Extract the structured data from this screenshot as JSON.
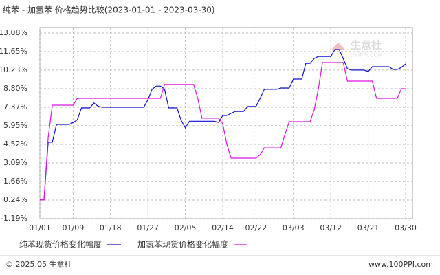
{
  "chart_data": {
    "type": "line",
    "title": "纯苯 - 加氢苯 价格趋势比较(2023-01-01 - 2023-03-30)",
    "categories": [
      "01/01",
      null,
      null,
      null,
      null,
      null,
      null,
      null,
      "01/09",
      null,
      null,
      null,
      null,
      null,
      null,
      null,
      null,
      "01/18",
      null,
      null,
      null,
      null,
      null,
      null,
      null,
      null,
      "01/27",
      null,
      null,
      null,
      null,
      null,
      null,
      null,
      null,
      "02/05",
      null,
      null,
      null,
      null,
      null,
      null,
      null,
      null,
      "02/14",
      null,
      null,
      null,
      null,
      null,
      null,
      null,
      "02/22",
      null,
      null,
      null,
      null,
      null,
      null,
      null,
      null,
      "03/03",
      null,
      null,
      null,
      null,
      null,
      null,
      null,
      null,
      "03/12",
      null,
      null,
      null,
      null,
      null,
      null,
      null,
      null,
      "03/21",
      null,
      null,
      null,
      null,
      null,
      null,
      null,
      null,
      "03/30"
    ],
    "series": [
      {
        "name": "纯苯现货价格变化幅度",
        "color": "#1010d0",
        "values": [
          0.24,
          0.24,
          4.68,
          4.68,
          6.05,
          6.05,
          6.05,
          6.05,
          6.2,
          6.4,
          7.32,
          7.32,
          7.32,
          7.7,
          7.45,
          7.37,
          7.37,
          7.37,
          7.37,
          7.37,
          7.37,
          7.37,
          7.37,
          7.37,
          7.37,
          7.37,
          7.95,
          8.75,
          9.0,
          9.0,
          8.75,
          7.32,
          7.32,
          7.32,
          6.37,
          5.79,
          6.3,
          6.3,
          6.3,
          6.3,
          6.3,
          6.3,
          6.3,
          6.2,
          6.74,
          6.74,
          6.9,
          7.05,
          7.05,
          7.05,
          7.43,
          7.43,
          7.43,
          8.06,
          8.75,
          8.75,
          8.75,
          8.75,
          8.85,
          8.85,
          8.85,
          9.54,
          9.54,
          9.54,
          10.75,
          10.75,
          11.12,
          11.28,
          11.28,
          11.28,
          11.28,
          11.81,
          11.81,
          11.12,
          10.33,
          10.23,
          10.23,
          10.23,
          10.23,
          10.12,
          10.49,
          10.49,
          10.49,
          10.49,
          10.49,
          10.28,
          10.28,
          10.44,
          10.7
        ]
      },
      {
        "name": "加氢苯现货价格变化幅度",
        "color": "#e010e0",
        "values": [
          0.24,
          0.24,
          5.05,
          7.53,
          7.53,
          7.53,
          7.53,
          7.53,
          7.53,
          8.06,
          8.06,
          8.06,
          8.06,
          8.06,
          8.06,
          8.06,
          8.06,
          8.06,
          8.06,
          8.06,
          8.06,
          8.06,
          8.06,
          8.06,
          8.06,
          8.06,
          8.06,
          8.06,
          8.06,
          8.06,
          9.12,
          9.12,
          9.12,
          9.12,
          9.12,
          9.12,
          9.12,
          9.12,
          8.06,
          6.53,
          6.53,
          6.53,
          6.53,
          6.53,
          6.1,
          4.52,
          3.46,
          3.46,
          3.46,
          3.46,
          3.46,
          3.46,
          3.46,
          3.72,
          4.25,
          4.25,
          4.25,
          4.25,
          4.25,
          5.31,
          6.26,
          6.26,
          6.26,
          6.26,
          6.26,
          6.26,
          7.16,
          8.75,
          10.81,
          10.81,
          10.81,
          10.81,
          10.81,
          10.81,
          9.38,
          9.38,
          9.38,
          9.38,
          9.38,
          9.38,
          9.38,
          8.06,
          8.06,
          8.06,
          8.06,
          8.06,
          8.06,
          8.8,
          8.8
        ]
      }
    ],
    "ylim": [
      -1.19,
      13.08
    ],
    "yticks": [
      {
        "value": -1.19,
        "label": "-1.19%"
      },
      {
        "value": 0.24,
        "label": "0.24%"
      },
      {
        "value": 1.66,
        "label": "1.66%"
      },
      {
        "value": 3.09,
        "label": "3.09%"
      },
      {
        "value": 4.52,
        "label": "4.52%"
      },
      {
        "value": 5.95,
        "label": "5.95%"
      },
      {
        "value": 7.37,
        "label": "7.37%"
      },
      {
        "value": 8.8,
        "label": "8.80%"
      },
      {
        "value": 10.23,
        "label": "10.23%"
      },
      {
        "value": 11.65,
        "label": "11.65%"
      },
      {
        "value": 13.08,
        "label": "13.08%"
      }
    ],
    "grid": true,
    "watermark": {
      "name": "生意社",
      "site": "100PPI.COM"
    },
    "footer": {
      "copyright": "© 2025.05 生意社",
      "site": "www.100PPI.com"
    }
  }
}
